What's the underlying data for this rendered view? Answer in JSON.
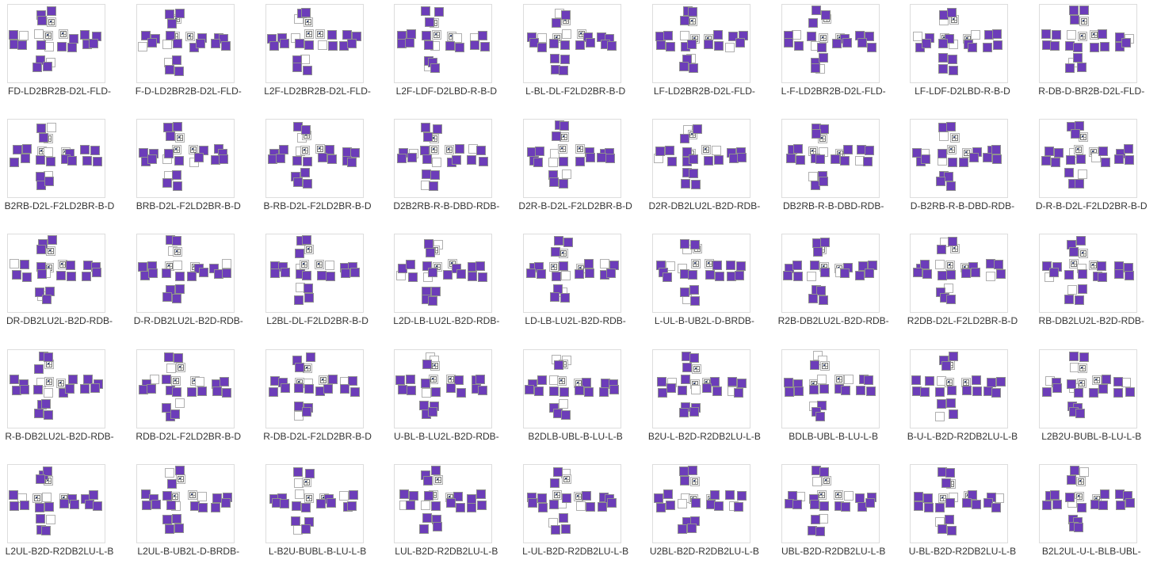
{
  "page": {
    "background": "#ffffff"
  },
  "colors": {
    "purple": "#6c3db9",
    "purple_border": "#8f8f8f",
    "white_border": "#b0b0b0",
    "card_border": "#dddddd",
    "caption": "#333333",
    "marker_dot": "#3a4a7a",
    "marker_line": "#999999"
  },
  "grid": {
    "columns": 9,
    "rows": 5
  },
  "net_faces_order": [
    "u",
    "l",
    "f",
    "r",
    "b",
    "d"
  ],
  "legend": {
    "sticker_states": {
      "p": "purple",
      "w": "white",
      "m": "white-with-marker-icon"
    },
    "net_layout": "unfolded 2x2x2 cube: up face on top, left/front/right/back faces in middle row, down face on bottom"
  },
  "thumbnails": [
    {
      "caption": "FD-LD2BR2B-D2L-FLD-",
      "net": {
        "u": "pppm",
        "l": "pwpp",
        "f": "wmpw",
        "r": "mppp",
        "b": "pppp",
        "d": "pwpp"
      }
    },
    {
      "caption": "F-D-LD2BR2B-D2L-FLD-",
      "net": {
        "u": "pppm",
        "l": "ppwp",
        "f": "pmwp",
        "r": "mppp",
        "b": "pppp",
        "d": "wppp"
      }
    },
    {
      "caption": "L2F-LD2BR2B-D2L-FLD-",
      "net": {
        "u": "ppwm",
        "l": "pppp",
        "f": "wmpp",
        "r": "mpwp",
        "b": "pppp",
        "d": "pwpp"
      }
    },
    {
      "caption": "L2F-LDF-D2LBD-R-B-D",
      "net": {
        "u": "pppm",
        "l": "pppp",
        "f": "pmpw",
        "r": "mwpp",
        "b": "wppp",
        "d": "ppwp"
      }
    },
    {
      "caption": "L-BL-DL-F2LD2BR-B-D",
      "net": {
        "u": "wppm",
        "l": "pwpp",
        "f": "mwpp",
        "r": "mppp",
        "b": "pppp",
        "d": "pppp"
      }
    },
    {
      "caption": "LF-LD2BR2B-D2L-FLD-",
      "net": {
        "u": "pppm",
        "l": "pppp",
        "f": "wmpp",
        "r": "mppp",
        "b": "ppwp",
        "d": "pwpp"
      }
    },
    {
      "caption": "L-F-LD2BR2B-D2L-FLD-",
      "net": {
        "u": "pppm",
        "l": "pwpp",
        "f": "pmwp",
        "r": "mppp",
        "b": "pppp",
        "d": "pppw"
      }
    },
    {
      "caption": "LF-LDF-D2LBD-R-B-D",
      "net": {
        "u": "ppwm",
        "l": "wppp",
        "f": "mppw",
        "r": "mwpp",
        "b": "pppp",
        "d": "pppp"
      }
    },
    {
      "caption": "R-DB-D-BR2B-D2L-FLD-",
      "net": {
        "u": "pppm",
        "l": "pppp",
        "f": "wmpp",
        "r": "mppp",
        "b": "pwpp",
        "d": "wppp"
      }
    },
    {
      "caption": "B2RB-D2L-F2LD2BR-B-D",
      "net": {
        "u": "pwpm",
        "l": "pppp",
        "f": "mwpp",
        "r": "mppp",
        "b": "pppp",
        "d": "pwpp"
      }
    },
    {
      "caption": "BRB-D2L-F2LD2BR-B-D",
      "net": {
        "u": "pppm",
        "l": "pppp",
        "f": "pmwp",
        "r": "mpwp",
        "b": "pppp",
        "d": "wppp"
      }
    },
    {
      "caption": "B-RB-D2L-F2LD2BR-B-D",
      "net": {
        "u": "ppwm",
        "l": "pppp",
        "f": "wmpp",
        "r": "mppp",
        "b": "pppp",
        "d": "pppp"
      }
    },
    {
      "caption": "D2B2RB-R-B-DBD-RDB-",
      "net": {
        "u": "pppm",
        "l": "pwpp",
        "f": "pmpw",
        "r": "mppp",
        "b": "wppp",
        "d": "ppwp"
      }
    },
    {
      "caption": "D2R-B-D2L-F2LD2BR-B-D",
      "net": {
        "u": "pppm",
        "l": "pppp",
        "f": "wmwp",
        "r": "mppp",
        "b": "pppp",
        "d": "pwpp"
      }
    },
    {
      "caption": "D2R-DB2LU2L-B2D-RDB-",
      "net": {
        "u": "wppm",
        "l": "ppwp",
        "f": "pmpp",
        "r": "mwpp",
        "b": "pppp",
        "d": "pppp"
      }
    },
    {
      "caption": "DB2RB-R-B-DBD-RDB-",
      "net": {
        "u": "pppm",
        "l": "pppp",
        "f": "mwpp",
        "r": "mppp",
        "b": "ppwp",
        "d": "wppp"
      }
    },
    {
      "caption": "D-B2RB-R-B-DBD-RDB-",
      "net": {
        "u": "ppwm",
        "l": "pwpp",
        "f": "pmwp",
        "r": "mppp",
        "b": "pppp",
        "d": "pppp"
      }
    },
    {
      "caption": "D-R-B-D2L-F2LD2BR-B-D",
      "net": {
        "u": "pppm",
        "l": "pppp",
        "f": "wmpp",
        "r": "mpwp",
        "b": "pppp",
        "d": "pwpp"
      }
    },
    {
      "caption": "DR-DB2LU2L-B2D-RDB-",
      "net": {
        "u": "pppm",
        "l": "wppp",
        "f": "pmpw",
        "r": "mppp",
        "b": "pppp",
        "d": "ppwp"
      }
    },
    {
      "caption": "D-R-DB2LU2L-B2D-RDB-",
      "net": {
        "u": "ppwm",
        "l": "pppp",
        "f": "mwpp",
        "r": "mppp",
        "b": "pwpp",
        "d": "pppp"
      }
    },
    {
      "caption": "L2BL-DL-F2LD2BR-B-D",
      "net": {
        "u": "pppm",
        "l": "pppp",
        "f": "wmpp",
        "r": "mwpp",
        "b": "pppp",
        "d": "wppp"
      }
    },
    {
      "caption": "L2D-LB-LU2L-B2D-RDB-",
      "net": {
        "u": "pwpm",
        "l": "ppwp",
        "f": "pmwp",
        "r": "mppp",
        "b": "pppp",
        "d": "pppp"
      }
    },
    {
      "caption": "LD-LB-LU2L-B2D-RDB-",
      "net": {
        "u": "pppm",
        "l": "pppp",
        "f": "mppw",
        "r": "mppp",
        "b": "wppp",
        "d": "pwpp"
      }
    },
    {
      "caption": "L-UL-B-UB2L-D-BRDB-",
      "net": {
        "u": "ppwm",
        "l": "pwpp",
        "f": "wmpp",
        "r": "mppp",
        "b": "pppp",
        "d": "ppwp"
      }
    },
    {
      "caption": "R2B-DB2LU2L-B2D-RDB-",
      "net": {
        "u": "pppm",
        "l": "pppp",
        "f": "pmwp",
        "r": "mpwp",
        "b": "pppp",
        "d": "pppp"
      }
    },
    {
      "caption": "R2DB-D2L-F2LD2BR-B-D",
      "net": {
        "u": "wppm",
        "l": "pppp",
        "f": "wmpp",
        "r": "mppp",
        "b": "ppwp",
        "d": "pwpp"
      }
    },
    {
      "caption": "RB-DB2LU2L-B2D-RDB-",
      "net": {
        "u": "pppm",
        "l": "ppwp",
        "f": "mwpp",
        "r": "mppp",
        "b": "pppp",
        "d": "wppp"
      }
    },
    {
      "caption": "R-B-DB2LU2L-B2D-RDB-",
      "net": {
        "u": "pppm",
        "l": "pppp",
        "f": "wmpw",
        "r": "mppp",
        "b": "pppp",
        "d": "pppp"
      }
    },
    {
      "caption": "RDB-D2L-F2LD2BR-B-D",
      "net": {
        "u": "ppwm",
        "l": "pwpp",
        "f": "pmpp",
        "r": "mwpp",
        "b": "pppp",
        "d": "pwpp"
      }
    },
    {
      "caption": "R-DB-D2L-F2LD2BR-B-D",
      "net": {
        "u": "pppm",
        "l": "pppp",
        "f": "mwpp",
        "r": "mppp",
        "b": "wppp",
        "d": "ppwp"
      }
    },
    {
      "caption": "U-BL-B-LU2L-B2D-RDB-",
      "net": {
        "u": "wwpm",
        "l": "pppp",
        "f": "pmwp",
        "r": "mppp",
        "b": "pppp",
        "d": "pppp"
      }
    },
    {
      "caption": "B2DLB-UBL-B-LU-L-B",
      "net": {
        "u": "wwpm",
        "l": "pppp",
        "f": "wmpp",
        "r": "mppp",
        "b": "pppp",
        "d": "pwpp"
      }
    },
    {
      "caption": "B2U-L-B2D-R2DB2LU-L-B",
      "net": {
        "u": "pppm",
        "l": "pwpp",
        "f": "pmpw",
        "r": "mppp",
        "b": "ppwp",
        "d": "pppp"
      }
    },
    {
      "caption": "BDLB-UBL-B-LU-L-B",
      "net": {
        "u": "wwpm",
        "l": "pppp",
        "f": "mwpp",
        "r": "mwpp",
        "b": "pppp",
        "d": "wppp"
      }
    },
    {
      "caption": "B-U-L-B2D-R2DB2LU-L-B",
      "net": {
        "u": "pppm",
        "l": "pppp",
        "f": "wmpp",
        "r": "mppp",
        "b": "pppp",
        "d": "ppwp"
      }
    },
    {
      "caption": "L2B2U-BUBL-B-LU-L-B",
      "net": {
        "u": "ppwm",
        "l": "wppp",
        "f": "pmwp",
        "r": "mppp",
        "b": "pwpp",
        "d": "pppp"
      }
    },
    {
      "caption": "L2UL-B2D-R2DB2LU-L-B",
      "net": {
        "u": "pppm",
        "l": "pwpp",
        "f": "mwpp",
        "r": "mppp",
        "b": "pppp",
        "d": "pwpp"
      }
    },
    {
      "caption": "L2UL-B-UB2L-D-BRDB-",
      "net": {
        "u": "wppm",
        "l": "pppp",
        "f": "pmpw",
        "r": "mwpp",
        "b": "pppp",
        "d": "pppp"
      }
    },
    {
      "caption": "L-B2U-BUBL-B-LU-L-B",
      "net": {
        "u": "ppwm",
        "l": "pppp",
        "f": "wmpp",
        "r": "mppp",
        "b": "wppp",
        "d": "ppwp"
      }
    },
    {
      "caption": "LUL-B2D-R2DB2LU-L-B",
      "net": {
        "u": "pppm",
        "l": "ppwp",
        "f": "pmwp",
        "r": "mppp",
        "b": "pppp",
        "d": "pppp"
      }
    },
    {
      "caption": "L-UL-B2D-R2DB2LU-L-B",
      "net": {
        "u": "pwpm",
        "l": "pppp",
        "f": "mppw",
        "r": "mpwp",
        "b": "pppp",
        "d": "wppp"
      }
    },
    {
      "caption": "U2BL-B2D-R2DB2LU-L-B",
      "net": {
        "u": "pppm",
        "l": "pppp",
        "f": "wmwp",
        "r": "mppp",
        "b": "ppwp",
        "d": "pppp"
      }
    },
    {
      "caption": "UBL-B2D-R2DB2LU-L-B",
      "net": {
        "u": "ppwm",
        "l": "pwpp",
        "f": "pmpp",
        "r": "mwpp",
        "b": "pppp",
        "d": "pwpp"
      }
    },
    {
      "caption": "U-BL-B2D-R2DB2LU-L-B",
      "net": {
        "u": "pppm",
        "l": "pppp",
        "f": "mwpp",
        "r": "mppp",
        "b": "pwpp",
        "d": "wppp"
      }
    },
    {
      "caption": "B2L2UL-U-L-BLB-UBL-",
      "net": {
        "u": "pwpm",
        "l": "pppp",
        "f": "pmwp",
        "r": "mppp",
        "b": "pppp",
        "d": "pppp"
      }
    }
  ]
}
